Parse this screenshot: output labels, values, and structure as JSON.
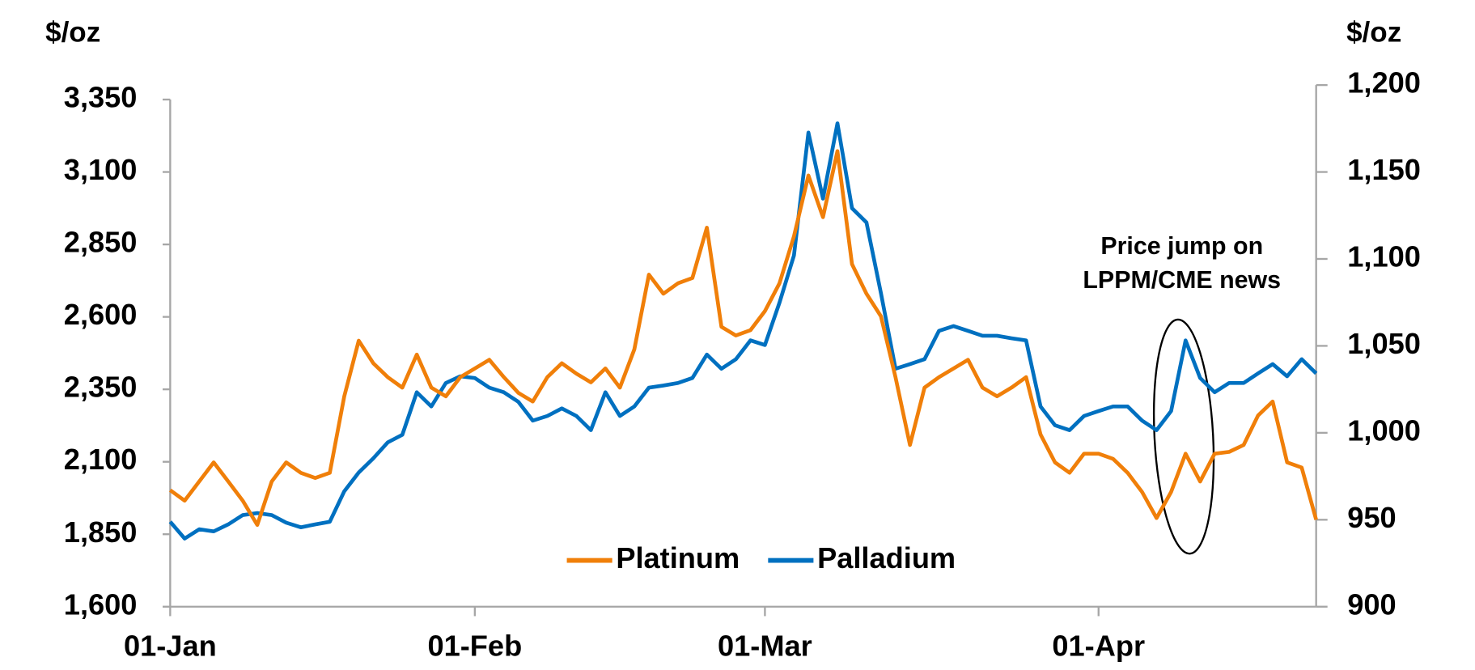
{
  "chart_data": {
    "type": "line",
    "y_label": "$/oz",
    "y2_label": "$/oz",
    "annotation": {
      "lines": [
        "Price jump on",
        "LPPM/CME news"
      ]
    },
    "legend": "bottom center",
    "x": [
      0,
      1,
      2,
      3,
      4,
      5,
      6,
      7,
      8,
      9,
      10,
      11,
      12,
      13,
      14,
      15,
      16,
      17,
      18,
      19,
      20,
      21,
      22,
      23,
      24,
      25,
      26,
      27,
      28,
      29,
      30,
      31,
      32,
      33,
      34,
      35,
      36,
      37,
      38,
      39,
      40,
      41,
      42,
      43,
      44,
      45,
      46,
      47,
      48,
      49,
      50,
      51,
      52,
      53,
      54,
      55,
      56,
      57,
      58,
      59,
      60,
      61,
      62,
      63,
      64,
      65,
      66,
      67,
      68,
      69,
      70,
      71,
      72,
      73,
      74,
      75,
      76,
      77,
      78,
      79
    ],
    "xlim": [
      0,
      79
    ],
    "xticks": [
      {
        "value": 0,
        "label": "01-Jan"
      },
      {
        "value": 21,
        "label": "01-Feb"
      },
      {
        "value": 41,
        "label": "01-Mar"
      },
      {
        "value": 64,
        "label": "01-Apr"
      }
    ],
    "ylim": [
      1600,
      3400
    ],
    "yticks": [
      {
        "value": 1600,
        "label": "1,600"
      },
      {
        "value": 1850,
        "label": "1,850"
      },
      {
        "value": 2100,
        "label": "2,100"
      },
      {
        "value": 2350,
        "label": "2,350"
      },
      {
        "value": 2600,
        "label": "2,600"
      },
      {
        "value": 2850,
        "label": "2,850"
      },
      {
        "value": 3100,
        "label": "3,100"
      },
      {
        "value": 3350,
        "label": "3,350"
      }
    ],
    "y2lim": [
      900,
      1200
    ],
    "y2ticks": [
      900,
      950,
      {
        "value": 1000,
        "label": "1,000"
      },
      {
        "value": 1050,
        "label": "1,050"
      },
      {
        "value": 1100,
        "label": "1,100"
      },
      {
        "value": 1150,
        "label": "1,150"
      },
      {
        "value": 1200,
        "label": "1,200"
      }
    ],
    "series": [
      {
        "name": "Platinum",
        "color": "#f07f09",
        "axis": "y2",
        "values": [
          967,
          961,
          972,
          983,
          972,
          961,
          947,
          972,
          983,
          977,
          974,
          977,
          1021,
          1053,
          1040,
          1032,
          1026,
          1045,
          1026,
          1021,
          1032,
          1037,
          1042,
          1032,
          1023,
          1018,
          1032,
          1040,
          1034,
          1029,
          1037,
          1026,
          1048,
          1091,
          1080,
          1086,
          1089,
          1118,
          1061,
          1056,
          1059,
          1070,
          1086,
          1113,
          1148,
          1124,
          1162,
          1097,
          1080,
          1067,
          1032,
          993,
          1026,
          1032,
          1037,
          1042,
          1026,
          1021,
          1026,
          1032,
          999,
          983,
          977,
          988,
          988,
          985,
          977,
          966,
          951,
          966,
          988,
          972,
          988,
          989,
          993,
          1010,
          1018,
          983,
          980,
          950
        ]
      },
      {
        "name": "Palladium",
        "color": "#0070c0",
        "axis": "y",
        "values": [
          1893,
          1835,
          1867,
          1860,
          1884,
          1916,
          1923,
          1916,
          1890,
          1874,
          1884,
          1893,
          1998,
          2063,
          2112,
          2167,
          2193,
          2340,
          2291,
          2372,
          2395,
          2389,
          2356,
          2340,
          2307,
          2242,
          2258,
          2284,
          2258,
          2209,
          2340,
          2258,
          2291,
          2356,
          2363,
          2372,
          2389,
          2470,
          2421,
          2454,
          2519,
          2503,
          2649,
          2812,
          3236,
          3008,
          3268,
          2975,
          2926,
          2682,
          2421,
          2437,
          2454,
          2552,
          2568,
          2552,
          2535,
          2535,
          2526,
          2519,
          2291,
          2226,
          2209,
          2258,
          2275,
          2291,
          2291,
          2242,
          2209,
          2275,
          2519,
          2389,
          2340,
          2372,
          2372,
          2405,
          2437,
          2395,
          2454,
          2405
        ]
      }
    ]
  }
}
